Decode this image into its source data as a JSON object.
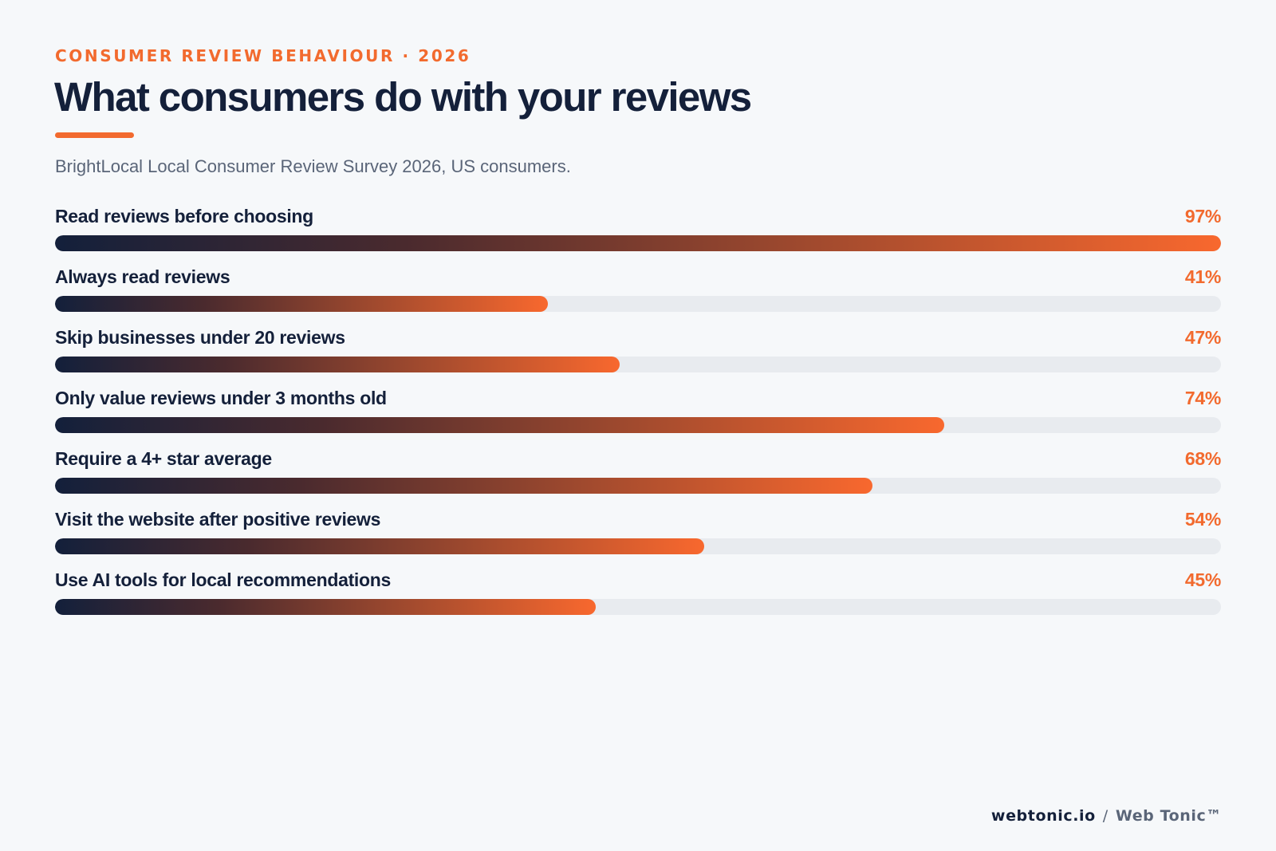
{
  "header": {
    "eyebrow": "CONSUMER REVIEW BEHAVIOUR · 2026",
    "title": "What consumers do with your reviews",
    "subtitle": "BrightLocal Local Consumer Review Survey 2026, US consumers."
  },
  "colors": {
    "accent": "#f26a2e",
    "navy": "#14203a",
    "track": "#e8ebef",
    "background": "#f6f8fa"
  },
  "chart_data": {
    "type": "bar",
    "orientation": "horizontal",
    "categories": [
      "Read reviews before choosing",
      "Always read reviews",
      "Skip businesses under 20 reviews",
      "Only value reviews under 3 months old",
      "Require a 4+ star average",
      "Visit the website after positive reviews",
      "Use AI tools for local recommendations"
    ],
    "values": [
      97,
      41,
      47,
      74,
      68,
      54,
      45
    ],
    "value_labels": [
      "97%",
      "41%",
      "47%",
      "74%",
      "68%",
      "54%",
      "45%"
    ],
    "xlim": [
      0,
      100
    ],
    "grid": false,
    "legend": "none"
  },
  "footer": {
    "domain": "webtonic.io",
    "separator": "/",
    "brand": "Web Tonic™"
  }
}
